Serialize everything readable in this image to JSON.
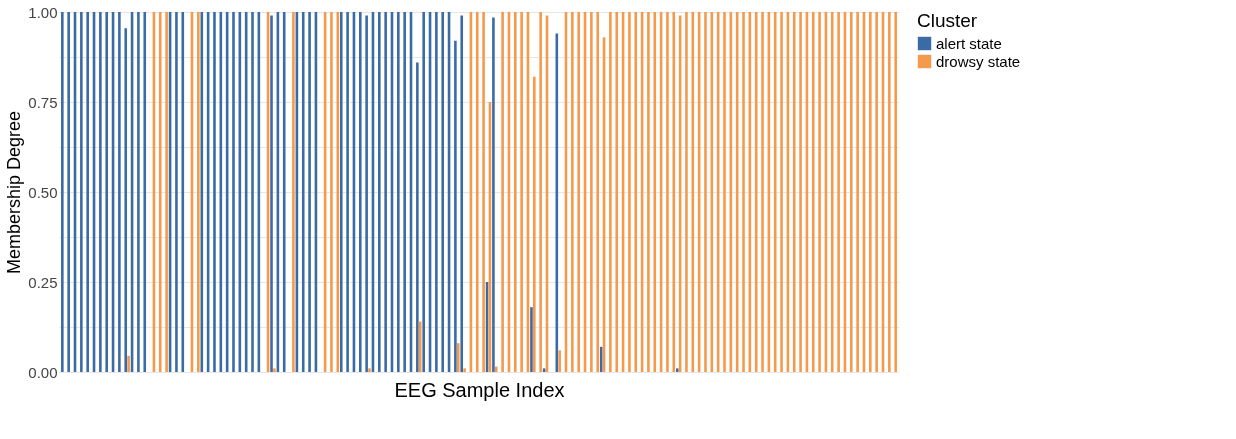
{
  "chart_data": {
    "type": "bar",
    "xlabel": "EEG Sample Index",
    "ylabel": "Membership Degree",
    "legend_title": "Cluster",
    "categories": [
      null,
      null,
      null,
      null,
      null,
      null,
      null,
      null,
      null,
      null,
      null,
      null,
      null,
      null,
      null,
      null,
      null,
      null,
      null,
      null,
      null,
      null,
      null,
      null,
      null,
      null,
      null,
      null,
      null,
      null,
      null,
      null,
      null,
      null,
      null,
      null,
      null,
      null,
      null,
      null,
      null,
      null,
      null,
      null,
      null,
      null,
      null,
      null,
      null,
      null,
      null,
      null,
      null,
      null,
      null,
      null,
      null,
      null,
      null,
      null,
      null,
      null,
      null,
      null,
      null,
      null,
      null,
      null,
      null,
      null,
      null,
      null,
      null,
      null,
      null,
      null,
      null,
      null,
      null,
      null,
      null,
      null,
      null,
      null,
      null,
      null,
      null,
      null,
      null,
      null,
      null,
      null,
      null,
      null,
      null,
      null,
      null,
      null,
      null,
      null,
      null,
      null,
      null,
      null,
      null,
      null,
      null,
      null,
      null,
      null,
      null,
      null,
      null,
      null,
      null,
      null,
      null,
      null,
      null,
      null,
      null,
      null,
      null,
      null,
      null,
      null,
      null,
      null,
      null,
      null,
      null,
      null
    ],
    "series": [
      {
        "name": "alert state",
        "color": "#3b6ba5",
        "values": [
          1,
          1,
          1,
          1,
          1,
          1,
          1,
          1,
          1,
          1,
          0.955,
          1,
          1,
          1,
          0,
          0,
          0,
          1,
          1,
          1,
          0,
          0,
          1,
          1,
          1,
          1,
          1,
          1,
          1,
          1,
          1,
          1,
          0,
          0.99,
          1,
          1,
          0,
          1,
          1,
          1,
          1,
          0,
          0,
          0,
          1,
          1,
          1,
          1,
          0.99,
          1,
          1,
          1,
          1,
          1,
          1,
          1,
          0.86,
          1,
          1,
          1,
          1,
          1,
          0.92,
          0.99,
          0,
          0,
          0,
          0.25,
          0.985,
          0,
          0,
          0,
          0,
          0,
          0.18,
          0,
          0.01,
          null,
          0.94,
          0,
          0,
          0,
          0,
          0,
          0,
          0.07,
          0,
          0,
          0,
          0,
          0,
          0,
          0,
          0,
          0,
          0,
          0,
          0.01,
          0,
          0,
          0,
          0,
          0,
          0,
          0,
          0,
          0,
          0,
          0,
          0,
          0,
          0,
          0,
          0,
          0,
          0,
          0,
          0,
          0,
          0,
          0,
          0,
          0,
          0,
          0,
          0,
          0,
          0,
          0,
          0,
          0,
          0
        ]
      },
      {
        "name": "drowsy state",
        "color": "#f59a4d",
        "values": [
          0,
          0,
          0,
          0,
          0,
          0,
          0,
          0,
          0,
          0,
          0.045,
          0,
          0,
          0,
          1,
          1,
          1,
          0,
          0,
          0,
          1,
          1,
          0,
          0,
          0,
          0,
          0,
          0,
          0,
          0,
          0,
          0,
          1,
          0.01,
          0,
          0,
          1,
          0,
          0,
          0,
          0,
          1,
          1,
          1,
          0,
          0,
          0,
          0,
          0.01,
          0,
          0,
          0,
          0,
          0,
          0,
          0,
          0.14,
          0,
          0,
          0,
          0,
          0,
          0.08,
          0.01,
          1,
          1,
          1,
          0.75,
          0.015,
          1,
          1,
          1,
          1,
          1,
          0.82,
          1,
          0.99,
          null,
          0.06,
          1,
          1,
          1,
          1,
          1,
          1,
          0.93,
          1,
          1,
          1,
          1,
          1,
          1,
          1,
          1,
          1,
          1,
          1,
          0.99,
          1,
          1,
          1,
          1,
          1,
          1,
          1,
          1,
          1,
          1,
          1,
          1,
          1,
          1,
          1,
          1,
          1,
          1,
          1,
          1,
          1,
          1,
          1,
          1,
          1,
          1,
          1,
          1,
          1,
          1,
          1,
          1,
          1,
          1
        ]
      }
    ],
    "ylim": [
      0,
      1
    ],
    "yticks": [
      {
        "value": 0,
        "label": "0.00"
      },
      {
        "value": 0.125,
        "label": null
      },
      {
        "value": 0.25,
        "label": "0.25"
      },
      {
        "value": 0.375,
        "label": null
      },
      {
        "value": 0.5,
        "label": "0.50"
      },
      {
        "value": 0.625,
        "label": null
      },
      {
        "value": 0.75,
        "label": "0.75"
      },
      {
        "value": 0.875,
        "label": null
      },
      {
        "value": 1,
        "label": "1.00"
      }
    ],
    "grid": "y",
    "legend": "right",
    "tick_labels": "y"
  }
}
